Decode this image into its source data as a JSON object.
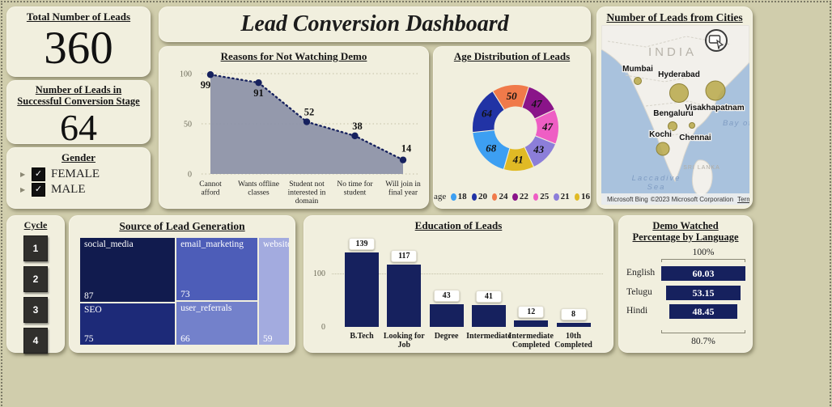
{
  "page": {
    "background": "#d0cdac",
    "panel": "#f1efde",
    "accent_navy": "#16215e"
  },
  "header": {
    "title": "Lead Conversion Dashboard"
  },
  "kpi_total": {
    "title": "Total Number of Leads",
    "value": "360"
  },
  "kpi_conversion": {
    "title": "Number of Leads in Successful Conversion Stage",
    "value": "64"
  },
  "gender": {
    "title": "Gender",
    "options": [
      {
        "label": "FEMALE",
        "checked": true
      },
      {
        "label": "MALE",
        "checked": true
      }
    ]
  },
  "cycle": {
    "title": "Cycle",
    "buttons": [
      "1",
      "2",
      "3",
      "4"
    ]
  },
  "map": {
    "title": "Number of Leads from Cities",
    "country_label": "INDIA",
    "sea_label_right": "Bay of Bengal",
    "sea_label_left_lines": [
      "Laccadive",
      "Sea"
    ],
    "island_label": "SRI LANKA",
    "cities": [
      {
        "name": "Mumbai",
        "bubble_size": "small"
      },
      {
        "name": "Hyderabad",
        "bubble_size": "large"
      },
      {
        "name": "Visakhapatnam",
        "bubble_size": "large"
      },
      {
        "name": "Bengaluru",
        "bubble_size": "small"
      },
      {
        "name": "Chennai",
        "bubble_size": "tiny"
      },
      {
        "name": "Kochi",
        "bubble_size": "medium"
      }
    ],
    "bubble_color": "#b9aa4d",
    "attribution": {
      "brand": "Microsoft Bing",
      "copyright": "©2023 Microsoft Corporation",
      "terms_label": "Terms"
    }
  },
  "chart_data": [
    {
      "id": "reasons",
      "type": "area",
      "title": "Reasons for Not Watching Demo",
      "categories": [
        "Cannot afford",
        "Wants offline classes",
        "Student not interested in domain",
        "No time for student",
        "Will join in final year"
      ],
      "category_lines": [
        [
          "Cannot",
          "afford"
        ],
        [
          "Wants offline",
          "classes"
        ],
        [
          "Student not",
          "interested in",
          "domain"
        ],
        [
          "No time for",
          "student"
        ],
        [
          "Will join in",
          "final year"
        ]
      ],
      "values": [
        99,
        91,
        52,
        38,
        14
      ],
      "ylim": [
        0,
        100
      ],
      "yticks": [
        0,
        50,
        100
      ],
      "grid": true,
      "line_color": "#16215e",
      "fill_color": "#8e94a9"
    },
    {
      "id": "age",
      "type": "donut",
      "title": "Age Distribution of Leads",
      "legend_title": "age",
      "legend_position": "bottom",
      "slices": [
        {
          "label": "18",
          "value": 68,
          "color": "#3d9ff2"
        },
        {
          "label": "20",
          "value": 64,
          "color": "#2133a5"
        },
        {
          "label": "24",
          "value": 50,
          "color": "#f07a4a"
        },
        {
          "label": "22",
          "value": 47,
          "color": "#8a1489"
        },
        {
          "label": "25",
          "value": 47,
          "color": "#ee5ec4"
        },
        {
          "label": "21",
          "value": 43,
          "color": "#8c7ed9"
        },
        {
          "label": "16",
          "value": 41,
          "color": "#e0ba25"
        }
      ],
      "draw_order": [
        "24",
        "22",
        "25",
        "21",
        "16",
        "18",
        "20"
      ],
      "start_angle_deg": -32
    },
    {
      "id": "source",
      "type": "treemap",
      "title": "Source of Lead Generation",
      "items": [
        {
          "label": "social_media",
          "value": 87,
          "color": "#111b4e"
        },
        {
          "label": "email_marketing",
          "value": 73,
          "color": "#4d5db8"
        },
        {
          "label": "website",
          "value": 59,
          "color": "#a3abdf"
        },
        {
          "label": "SEO",
          "value": 75,
          "color": "#1d2a78"
        },
        {
          "label": "user_referrals",
          "value": 66,
          "color": "#7381cb"
        }
      ]
    },
    {
      "id": "education",
      "type": "bar",
      "title": "Education of Leads",
      "categories": [
        "B.Tech",
        "Looking for Job",
        "Degree",
        "Intermediate",
        "Intermediate Completed",
        "10th Completed"
      ],
      "category_lines": [
        [
          "B.Tech"
        ],
        [
          "Looking for",
          "Job"
        ],
        [
          "Degree"
        ],
        [
          "Intermediate"
        ],
        [
          "Intermediate",
          "Completed"
        ],
        [
          "10th",
          "Completed"
        ]
      ],
      "values": [
        139,
        117,
        43,
        41,
        12,
        8
      ],
      "yticks": [
        0,
        100
      ],
      "ylim": [
        0,
        150
      ],
      "bar_color": "#16215e"
    },
    {
      "id": "demo_watched",
      "type": "funnel",
      "title": "Demo Watched Percentage by Language",
      "categories": [
        "English",
        "Telugu",
        "Hindi"
      ],
      "values": [
        60.03,
        53.15,
        48.45
      ],
      "top_label": "100%",
      "bottom_label": "80.7%",
      "bar_color": "#16215e"
    }
  ]
}
